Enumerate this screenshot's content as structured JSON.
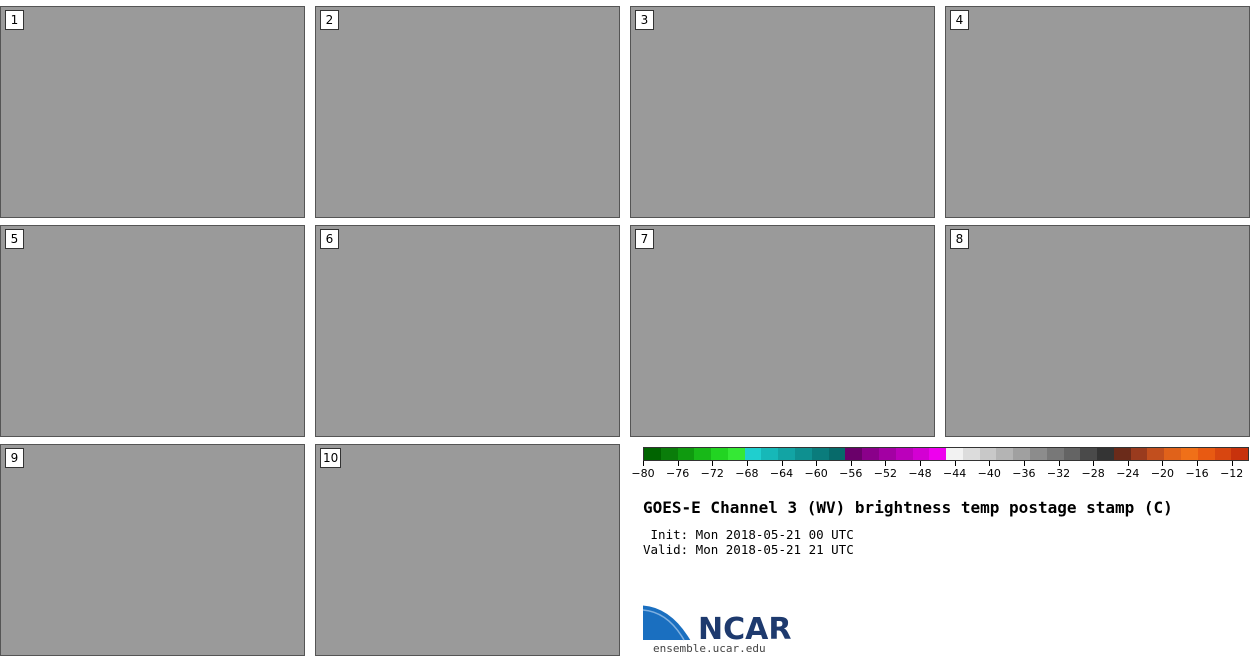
{
  "title": "GOES-E Channel 3 (WV) brightness temp postage stamp (C)",
  "init": " Init: Mon 2018-05-21 00 UTC",
  "valid": "Valid: Mon 2018-05-21 21 UTC",
  "panels": [
    {
      "label": "1"
    },
    {
      "label": "2"
    },
    {
      "label": "3"
    },
    {
      "label": "4"
    },
    {
      "label": "5"
    },
    {
      "label": "6"
    },
    {
      "label": "7"
    },
    {
      "label": "8"
    },
    {
      "label": "9"
    },
    {
      "label": "10"
    }
  ],
  "colorbar": {
    "ticks": [
      "-80",
      "-76",
      "-72",
      "-68",
      "-64",
      "-60",
      "-56",
      "-52",
      "-48",
      "-44",
      "-40",
      "-36",
      "-32",
      "-28",
      "-24",
      "-20",
      "-16",
      "-12"
    ],
    "range": [
      -80,
      -10
    ],
    "colors": [
      "#006400",
      "#0a7d0a",
      "#0f9a0f",
      "#18b818",
      "#22d422",
      "#35e835",
      "#1fcfcf",
      "#16b8b8",
      "#12a4a4",
      "#0e9090",
      "#0a7c7c",
      "#076a6a",
      "#6a006a",
      "#8a008a",
      "#a300a3",
      "#bb00bb",
      "#d300d3",
      "#ee00ee",
      "#f2f2f2",
      "#dcdcdc",
      "#c8c8c8",
      "#b4b4b4",
      "#a0a0a0",
      "#8c8c8c",
      "#787878",
      "#646464",
      "#4a4a4a",
      "#343434",
      "#6b2b1a",
      "#9a3b1e",
      "#c24f1e",
      "#e0621a",
      "#f07018",
      "#e85a12",
      "#d84610",
      "#c8320c"
    ]
  },
  "logo": {
    "text": "NCAR",
    "url": "ensemble.ucar.edu"
  }
}
